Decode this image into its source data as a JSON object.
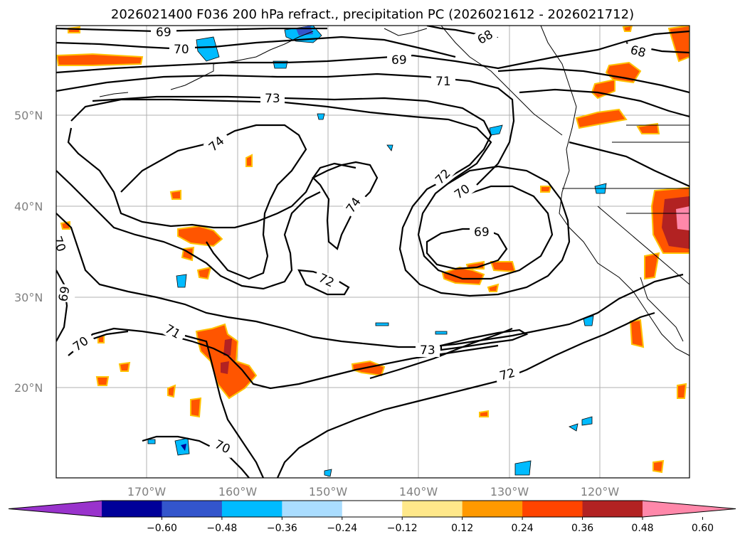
{
  "title": "2026021400 F036 200 hPa refract., precipitation PC (2026021612 - 2026021712)",
  "map": {
    "lat_labels": [
      "50°N",
      "40°N",
      "30°N",
      "20°N"
    ],
    "lon_labels": [
      "170°W",
      "160°W",
      "150°W",
      "140°W",
      "130°W",
      "120°W"
    ],
    "contour_labels": [
      "69",
      "70",
      "68",
      "69",
      "71",
      "73",
      "68",
      "74",
      "72",
      "70",
      "74",
      "69",
      "70",
      "69",
      "72",
      "71",
      "70",
      "73",
      "72",
      "70"
    ]
  },
  "colorbar": {
    "ticks": [
      "−0.60",
      "−0.48",
      "−0.36",
      "−0.24",
      "−0.12",
      "0.12",
      "0.24",
      "0.36",
      "0.48",
      "0.60"
    ],
    "colors": [
      "#9933cc",
      "#000099",
      "#3355cc",
      "#00bbff",
      "#aaddff",
      "#ffffff",
      "#ffe88a",
      "#ff9900",
      "#ff4400",
      "#b22222",
      "#ff88aa"
    ]
  }
}
